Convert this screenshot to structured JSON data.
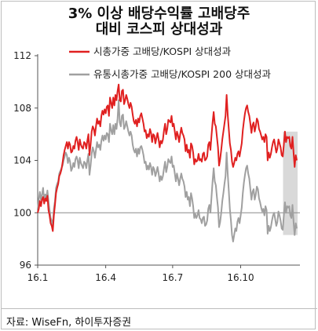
{
  "title_line1": "3% 이상 배당수익률 고배당주",
  "title_line2": "대비 코스피 상대성과",
  "source": "자료: WiseFn, 하이투자증권",
  "chart_data": {
    "type": "line",
    "title": "3% 이상 배당수익률 고배당주 대비 코스피 상대성과",
    "xlabel": "",
    "ylabel": "",
    "ylim": [
      96,
      112
    ],
    "y_ticks": [
      96,
      100,
      104,
      108,
      112
    ],
    "x_tick_labels": [
      "16.1",
      "16.4",
      "16.7",
      "16.10"
    ],
    "x_ticks_at_index": [
      0,
      63,
      125,
      188
    ],
    "baseline": 100,
    "grid": false,
    "legend_position": "top-right",
    "highlight_band_from_index": 228,
    "series": [
      {
        "name": "시총가중 고배당/KOSPI 상대성과",
        "color": "#e02020",
        "values": [
          100.0,
          100.3,
          100.9,
          100.5,
          101.0,
          101.2,
          100.7,
          101.1,
          100.9,
          101.3,
          100.2,
          99.8,
          99.2,
          99.0,
          98.6,
          99.8,
          100.6,
          101.5,
          101.9,
          102.2,
          102.8,
          103.0,
          103.3,
          103.8,
          104.4,
          104.8,
          105.1,
          105.4,
          104.9,
          105.4,
          105.2,
          104.6,
          104.7,
          105.1,
          104.9,
          105.5,
          105.8,
          105.4,
          104.8,
          105.6,
          105.2,
          105.0,
          104.9,
          105.4,
          105.3,
          104.9,
          105.5,
          106.0,
          104.4,
          105.2,
          106.2,
          106.6,
          106.4,
          105.9,
          106.6,
          107.2,
          106.8,
          107.0,
          106.6,
          107.4,
          107.8,
          107.5,
          107.9,
          107.6,
          108.1,
          108.2,
          107.4,
          108.8,
          108.4,
          108.0,
          108.8,
          108.2,
          109.0,
          108.6,
          109.3,
          109.8,
          108.6,
          108.5,
          109.3,
          109.4,
          108.3,
          108.6,
          109.0,
          108.7,
          108.3,
          108.0,
          108.4,
          108.1,
          107.5,
          107.0,
          106.8,
          107.1,
          106.6,
          107.2,
          106.9,
          107.4,
          107.6,
          107.2,
          106.8,
          106.2,
          106.3,
          105.7,
          106.0,
          105.8,
          106.4,
          106.1,
          105.4,
          106.0,
          105.9,
          105.3,
          105.7,
          106.1,
          105.6,
          105.0,
          105.5,
          105.3,
          105.6,
          106.3,
          106.8,
          106.0,
          106.4,
          107.1,
          107.0,
          106.9,
          107.4,
          106.6,
          106.8,
          106.2,
          105.6,
          106.2,
          105.9,
          105.4,
          106.0,
          106.5,
          106.1,
          105.9,
          105.6,
          104.7,
          105.2,
          104.6,
          104.8,
          104.2,
          105.3,
          105.1,
          104.6,
          103.7,
          104.1,
          103.9,
          104.0,
          104.5,
          104.0,
          104.1,
          103.9,
          104.5,
          104.6,
          104.0,
          104.1,
          104.3,
          105.2,
          105.4,
          104.8,
          105.9,
          106.9,
          107.7,
          106.8,
          106.6,
          105.8,
          105.0,
          103.6,
          104.1,
          104.8,
          105.6,
          106.2,
          106.8,
          107.4,
          109.0,
          107.5,
          106.4,
          105.3,
          104.8,
          103.9,
          103.5,
          103.8,
          104.2,
          104.0,
          104.5,
          104.7,
          104.3,
          104.8,
          105.3,
          106.3,
          107.0,
          107.6,
          108.0,
          108.2,
          107.7,
          107.4,
          106.8,
          106.1,
          106.7,
          106.9,
          106.2,
          106.6,
          107.2,
          107.0,
          106.4,
          106.2,
          105.9,
          105.6,
          105.8,
          105.4,
          106.0,
          105.8,
          104.0,
          104.6,
          104.2,
          104.5,
          105.0,
          105.4,
          105.6,
          105.1,
          104.6,
          104.9,
          105.6,
          105.3,
          105.0,
          104.4,
          104.3,
          105.2,
          106.2,
          105.4,
          105.8,
          105.7,
          105.8,
          105.1,
          104.9,
          105.8,
          104.6,
          103.5,
          104.4,
          104.0
        ]
      },
      {
        "name": "유통시총가중 고배당/KOSPI 200 상대성과",
        "color": "#a0a0a0",
        "values": [
          100.2,
          101.0,
          101.6,
          101.0,
          101.4,
          101.9,
          100.9,
          101.4,
          101.1,
          101.7,
          100.9,
          100.2,
          99.6,
          99.4,
          99.0,
          100.3,
          100.9,
          101.9,
          102.2,
          102.4,
          103.0,
          103.2,
          103.4,
          103.6,
          104.0,
          104.3,
          104.6,
          104.4,
          103.8,
          104.2,
          103.9,
          103.2,
          103.4,
          103.8,
          103.5,
          104.1,
          104.3,
          104.0,
          103.4,
          104.2,
          103.8,
          103.6,
          103.4,
          103.9,
          103.8,
          103.4,
          104.0,
          104.5,
          102.9,
          103.6,
          104.5,
          105.0,
          104.7,
          104.2,
          104.8,
          105.4,
          105.0,
          105.2,
          104.8,
          105.5,
          105.9,
          105.5,
          105.9,
          105.6,
          106.1,
          106.0,
          105.4,
          106.8,
          106.3,
          106.0,
          106.7,
          106.0,
          106.8,
          106.4,
          107.2,
          108.6,
          106.9,
          106.6,
          107.4,
          107.5,
          106.4,
          106.6,
          107.0,
          106.6,
          106.2,
          105.9,
          106.2,
          105.9,
          105.2,
          104.8,
          104.6,
          104.9,
          104.3,
          104.9,
          104.5,
          105.0,
          105.1,
          104.8,
          104.4,
          103.8,
          103.9,
          103.3,
          103.6,
          103.3,
          103.8,
          103.5,
          102.9,
          103.5,
          103.3,
          102.8,
          103.1,
          103.5,
          103.0,
          102.4,
          102.8,
          102.5,
          102.8,
          103.4,
          103.9,
          103.1,
          103.5,
          104.1,
          103.9,
          103.8,
          104.3,
          103.5,
          103.6,
          103.0,
          102.4,
          103.0,
          102.6,
          102.1,
          102.6,
          103.0,
          102.6,
          102.4,
          102.0,
          101.2,
          101.6,
          101.0,
          101.2,
          100.5,
          101.5,
          101.1,
          100.5,
          99.6,
          99.9,
          99.6,
          99.8,
          100.2,
          99.6,
          99.5,
          99.2,
          99.6,
          99.7,
          99.0,
          99.1,
          99.4,
          100.3,
          100.6,
          100.0,
          101.2,
          102.4,
          103.4,
          102.4,
          102.1,
          101.2,
          100.4,
          98.9,
          99.3,
          100.0,
          100.9,
          101.5,
          102.2,
          102.8,
          104.6,
          103.0,
          101.7,
          100.3,
          99.4,
          98.3,
          97.8,
          98.3,
          98.8,
          98.6,
          99.3,
          99.6,
          99.2,
          99.8,
          100.4,
          101.5,
          102.3,
          102.9,
          103.4,
          103.6,
          103.0,
          102.6,
          101.8,
          101.0,
          101.6,
          101.8,
          101.0,
          101.4,
          102.0,
          101.8,
          101.1,
          100.8,
          100.4,
          100.1,
          100.3,
          99.8,
          100.5,
          100.2,
          98.4,
          99.0,
          98.6,
          98.9,
          99.4,
          99.8,
          100.0,
          99.5,
          99.0,
          99.3,
          100.1,
          99.8,
          99.4,
          98.8,
          98.7,
          99.8,
          100.8,
          100.0,
          100.5,
          100.4,
          100.5,
          99.8,
          99.6,
          100.6,
          99.3,
          98.3,
          99.2,
          98.8
        ]
      }
    ]
  }
}
